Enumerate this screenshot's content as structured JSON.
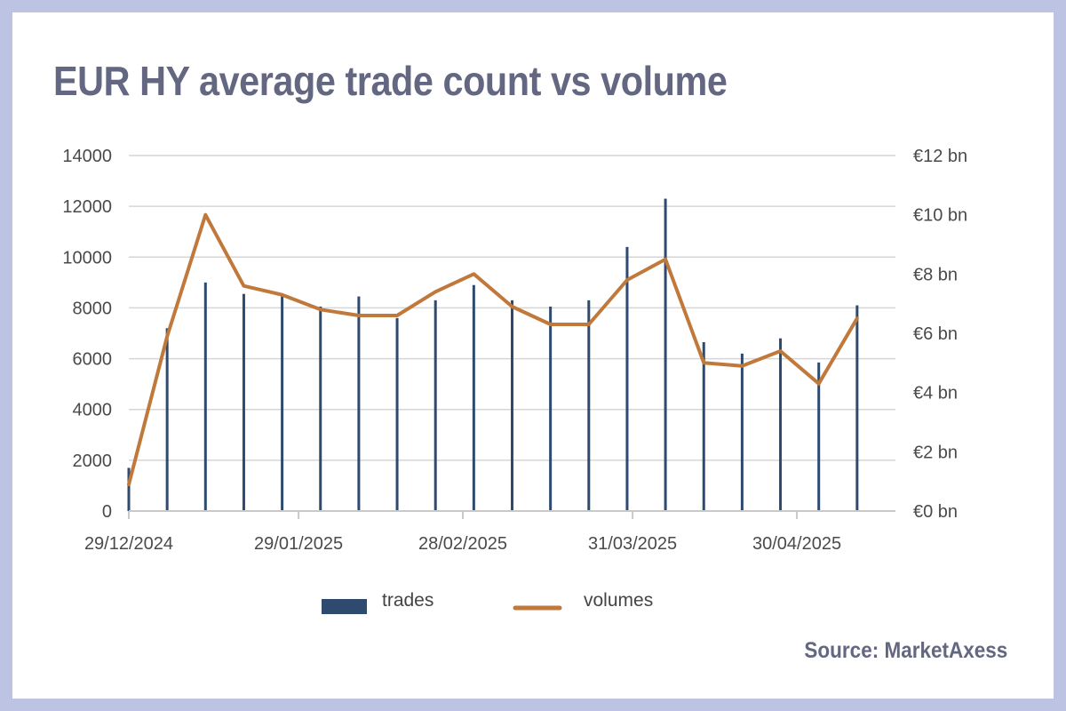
{
  "title": "EUR HY average trade count vs volume",
  "source": "Source: MarketAxess",
  "colors": {
    "trades": "#2e4a6e",
    "volumes": "#c0793a",
    "text": "#636781",
    "grid": "#d6d6d6",
    "background": "#bcc3e3"
  },
  "chart_data": {
    "type": "bar+line",
    "title": "EUR HY average trade count vs volume",
    "x_range": [
      "2024-12-29",
      "2025-05-18"
    ],
    "x_tick_labels": [
      "29/12/2024",
      "29/01/2025",
      "28/02/2025",
      "31/03/2025",
      "30/04/2025"
    ],
    "y_left": {
      "min": 0,
      "max": 14000,
      "ticks": [
        "0",
        "2000",
        "4000",
        "6000",
        "8000",
        "10000",
        "12000",
        "14000"
      ]
    },
    "y_right": {
      "min": 0,
      "max": 12,
      "unit": "€ bn",
      "ticks": [
        "€0 bn",
        "€2 bn",
        "€4 bn",
        "€6 bn",
        "€8 bn",
        "€10 bn",
        "€12 bn"
      ]
    },
    "grid": true,
    "legend": {
      "position": "bottom-center",
      "entries": [
        "trades",
        "volumes"
      ]
    },
    "x": [
      "2024-12-29",
      "2025-01-05",
      "2025-01-12",
      "2025-01-19",
      "2025-01-26",
      "2025-02-02",
      "2025-02-09",
      "2025-02-16",
      "2025-02-23",
      "2025-03-02",
      "2025-03-09",
      "2025-03-16",
      "2025-03-23",
      "2025-03-30",
      "2025-04-06",
      "2025-04-13",
      "2025-04-20",
      "2025-04-27",
      "2025-05-04",
      "2025-05-11"
    ],
    "series": [
      {
        "name": "trades",
        "type": "bar",
        "axis": "left",
        "values": [
          1700,
          7200,
          9000,
          8550,
          8450,
          8050,
          8450,
          7600,
          8300,
          8900,
          8300,
          8050,
          8300,
          10400,
          12300,
          6650,
          6200,
          6800,
          5850,
          8100
        ]
      },
      {
        "name": "volumes",
        "type": "line",
        "axis": "right",
        "values": [
          0.9,
          5.9,
          10.0,
          7.6,
          7.3,
          6.8,
          6.6,
          6.6,
          7.4,
          8.0,
          6.9,
          6.3,
          6.3,
          7.8,
          8.5,
          5.0,
          4.9,
          5.4,
          4.3,
          6.5
        ]
      }
    ]
  }
}
